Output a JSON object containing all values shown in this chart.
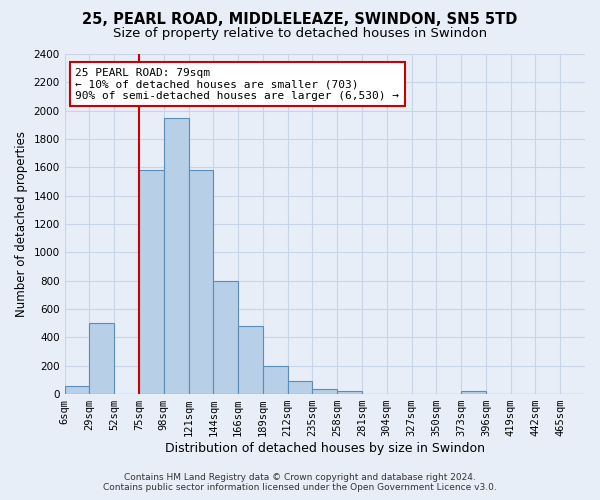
{
  "title1": "25, PEARL ROAD, MIDDLELEAZE, SWINDON, SN5 5TD",
  "title2": "Size of property relative to detached houses in Swindon",
  "xlabel": "Distribution of detached houses by size in Swindon",
  "ylabel": "Number of detached properties",
  "bar_labels": [
    "6sqm",
    "29sqm",
    "52sqm",
    "75sqm",
    "98sqm",
    "121sqm",
    "144sqm",
    "166sqm",
    "189sqm",
    "212sqm",
    "235sqm",
    "258sqm",
    "281sqm",
    "304sqm",
    "327sqm",
    "350sqm",
    "373sqm",
    "396sqm",
    "419sqm",
    "442sqm",
    "465sqm"
  ],
  "bar_values": [
    60,
    500,
    0,
    1580,
    1950,
    1580,
    800,
    480,
    195,
    90,
    35,
    25,
    0,
    0,
    0,
    0,
    20,
    0,
    0,
    0,
    0
  ],
  "bar_color": "#b8cfe8",
  "bar_edge_color": "#5b8db8",
  "bar_edge_width": 0.8,
  "grid_color": "#c8d4e8",
  "background_color": "#e8eef8",
  "vline_x_index": 3,
  "vline_color": "#cc0000",
  "annotation_text": "25 PEARL ROAD: 79sqm\n← 10% of detached houses are smaller (703)\n90% of semi-detached houses are larger (6,530) →",
  "annotation_box_color": "#ffffff",
  "annotation_box_edgecolor": "#cc0000",
  "ylim": [
    0,
    2400
  ],
  "yticks": [
    0,
    200,
    400,
    600,
    800,
    1000,
    1200,
    1400,
    1600,
    1800,
    2000,
    2200,
    2400
  ],
  "footer1": "Contains HM Land Registry data © Crown copyright and database right 2024.",
  "footer2": "Contains public sector information licensed under the Open Government Licence v3.0.",
  "title1_fontsize": 10.5,
  "title2_fontsize": 9.5,
  "xlabel_fontsize": 9,
  "ylabel_fontsize": 8.5,
  "tick_fontsize": 7.5,
  "annotation_fontsize": 8,
  "footer_fontsize": 6.5
}
